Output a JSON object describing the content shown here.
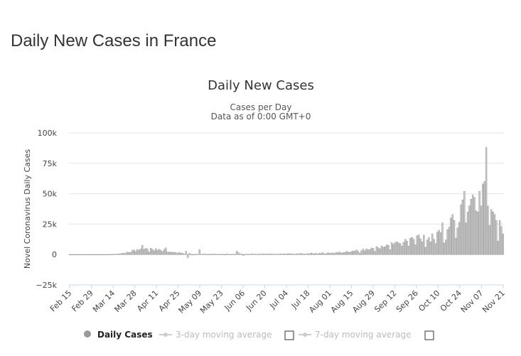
{
  "page_title": "Daily New Cases in France",
  "chart_data": {
    "type": "bar",
    "title": "Daily New Cases",
    "subtitle_lines": [
      "Cases per Day",
      "Data as of 0:00 GMT+0"
    ],
    "ylabel": "Novel Coronavirus Daily Cases",
    "xlabel": "",
    "ylim": [
      -25000,
      100000
    ],
    "y_ticks": [
      {
        "value": 100000,
        "label": "100k"
      },
      {
        "value": 75000,
        "label": "75k"
      },
      {
        "value": 50000,
        "label": "50k"
      },
      {
        "value": 25000,
        "label": "25k"
      },
      {
        "value": 0,
        "label": "0"
      },
      {
        "value": -25000,
        "label": "−25k"
      }
    ],
    "x_tick_labels": [
      "Feb 15",
      "Feb 29",
      "Mar 14",
      "Mar 28",
      "Apr 11",
      "Apr 25",
      "May 09",
      "May 23",
      "Jun 06",
      "Jun 20",
      "Jul 04",
      "Jul 18",
      "Aug 01",
      "Aug 15",
      "Aug 29",
      "Sep 12",
      "Sep 26",
      "Oct 10",
      "Oct 24",
      "Nov 07",
      "Nov 21"
    ],
    "grid": true,
    "legend_position": "bottom",
    "legend": [
      {
        "label": "Daily Cases",
        "active": true,
        "marker": "circle",
        "color": "#999999"
      },
      {
        "label": "3-day moving average",
        "active": false,
        "marker": "line-dot",
        "color": "#cccccc",
        "checkbox": true
      },
      {
        "label": "7-day moving average",
        "active": false,
        "marker": "line-dot",
        "color": "#cccccc",
        "checkbox": true
      }
    ],
    "bar_color": "#c8c8c8",
    "bar_stroke": "#8a8a8a",
    "series": [
      {
        "name": "Daily Cases",
        "start_date": "Feb 15",
        "values": [
          0,
          0,
          0,
          0,
          0,
          0,
          0,
          0,
          0,
          12,
          0,
          0,
          0,
          0,
          20,
          45,
          57,
          43,
          85,
          0,
          0,
          100,
          0,
          38,
          190,
          180,
          200,
          280,
          370,
          500,
          600,
          900,
          1200,
          800,
          2000,
          1800,
          1600,
          3200,
          3800,
          2500,
          4200,
          3500,
          4600,
          7600,
          4300,
          5000,
          4700,
          2100,
          5200,
          4400,
          3200,
          4800,
          3400,
          4300,
          3600,
          2400,
          4300,
          5500,
          2100,
          1900,
          2100,
          1700,
          1800,
          1500,
          1000,
          1800,
          1100,
          1000,
          300,
          2700,
          -2500,
          1100,
          0,
          0,
          100,
          200,
          300,
          4000,
          300,
          200,
          400,
          300,
          100,
          200,
          400,
          200,
          400,
          100,
          300,
          200,
          100,
          200,
          -300,
          500,
          300,
          100,
          200,
          200,
          100,
          2800,
          1500,
          500,
          400,
          -800,
          200,
          300,
          100,
          200,
          600,
          300,
          400,
          300,
          200,
          400,
          300,
          600,
          300,
          500,
          200,
          600,
          500,
          300,
          200,
          400,
          300,
          500,
          400,
          700,
          200,
          500,
          800,
          600,
          500,
          300,
          200,
          700,
          400,
          1000,
          500,
          600,
          300,
          800,
          500,
          1200,
          900,
          600,
          1000,
          400,
          1100,
          900,
          1500,
          700,
          600,
          1400,
          1200,
          1000,
          1300,
          800,
          1700,
          1500,
          2100,
          1200,
          1500,
          1600,
          2500,
          2000,
          1800,
          2300,
          3000,
          2700,
          3800,
          2600,
          1200,
          3200,
          4500,
          3100,
          4600,
          3900,
          4000,
          5400,
          5000,
          2500,
          6500,
          5500,
          4800,
          7000,
          6000,
          6500,
          8000,
          7500,
          4000,
          9800,
          8500,
          9800,
          10500,
          9500,
          9000,
          7000,
          10000,
          12500,
          11000,
          7000,
          13500,
          14000,
          12500,
          8000,
          15500,
          16000,
          13000,
          10500,
          16000,
          6000,
          12000,
          14000,
          10500,
          17000,
          12500,
          9000,
          18500,
          20000,
          18000,
          26000,
          9500,
          12000,
          20500,
          22500,
          30000,
          33000,
          28000,
          13500,
          22000,
          26500,
          41000,
          45000,
          52000,
          26000,
          35000,
          40000,
          45500,
          49000,
          47000,
          36000,
          35000,
          52000,
          40000,
          58000,
          60000,
          88000,
          40000,
          24000,
          37000,
          35000,
          33000,
          28000,
          11000,
          28000,
          23000,
          17000
        ]
      }
    ]
  }
}
